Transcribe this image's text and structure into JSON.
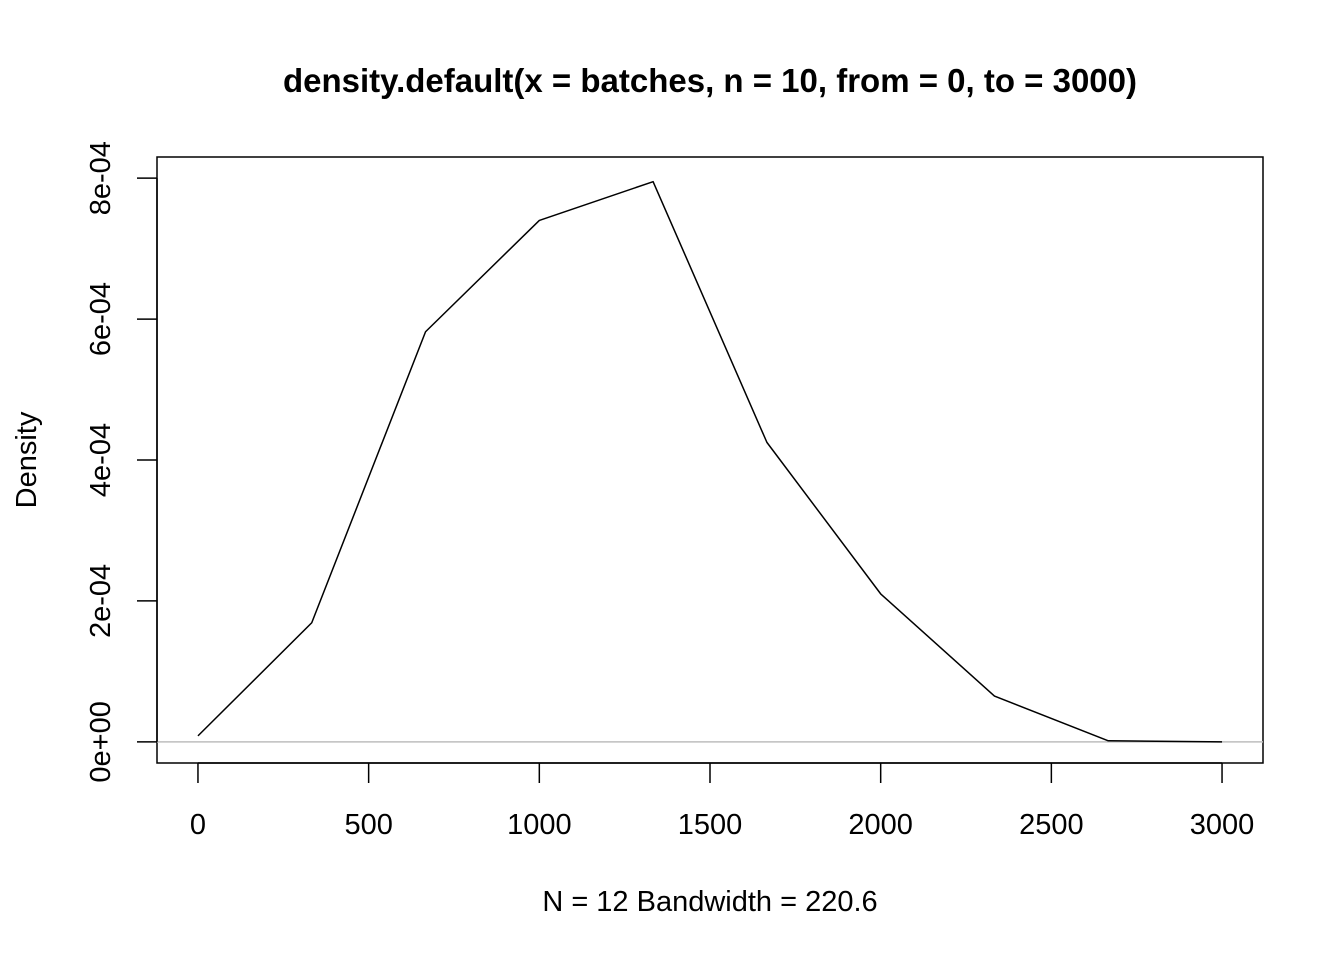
{
  "chart_data": {
    "type": "line",
    "title": "density.default(x = batches, n = 10, from = 0, to = 3000)",
    "xlabel": "N = 12   Bandwidth = 220.6",
    "ylabel": "Density",
    "x_ticks": [
      "0",
      "500",
      "1000",
      "1500",
      "2000",
      "2500",
      "3000"
    ],
    "y_ticks": [
      "0e+00",
      "2e-04",
      "4e-04",
      "6e-04",
      "8e-04"
    ],
    "xlim": [
      -120,
      3120
    ],
    "ylim": [
      -3e-05,
      0.00083
    ],
    "grid": false,
    "zero_line": true,
    "series": [
      {
        "x": [
          0,
          333.3,
          666.7,
          1000,
          1333.3,
          1666.7,
          2000,
          2333.3,
          2666.7,
          3000
        ],
        "y": [
          8.5e-06,
          0.000169,
          0.000582,
          0.00074,
          0.000795,
          0.000425,
          0.00021,
          6.5e-05,
          1.5e-06,
          0.0
        ]
      }
    ],
    "colors": {
      "line": "#000000",
      "zero_line": "#bebebe",
      "axes": "#000000"
    }
  }
}
